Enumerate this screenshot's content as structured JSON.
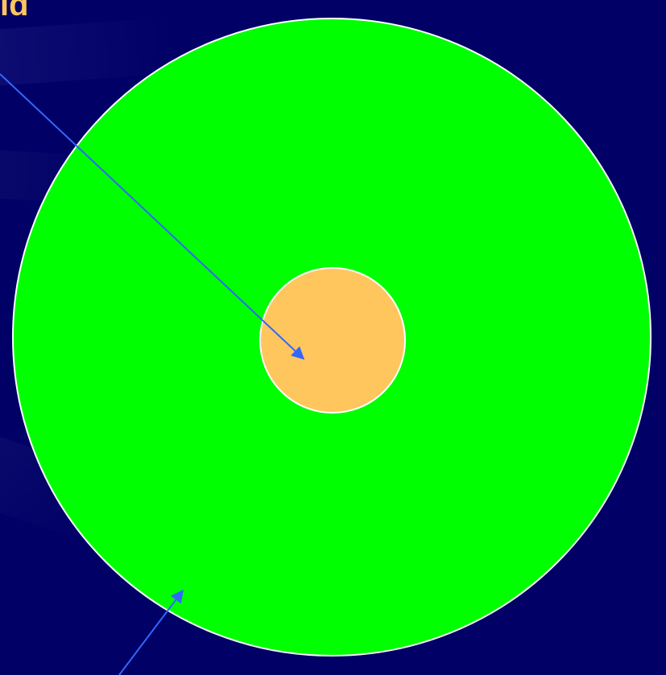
{
  "slide": {
    "label_text": "ld",
    "colors": {
      "background": "#000066",
      "outer_circle": "#00FF00",
      "inner_circle": "#FFC65E",
      "circle_outline": "#FFFFFF",
      "arrows": "#3366FF",
      "label": "#FFC65E"
    },
    "shapes": [
      "outer-circle",
      "inner-circle",
      "arrow-to-inner-circle",
      "arrow-to-outer-circle"
    ]
  }
}
